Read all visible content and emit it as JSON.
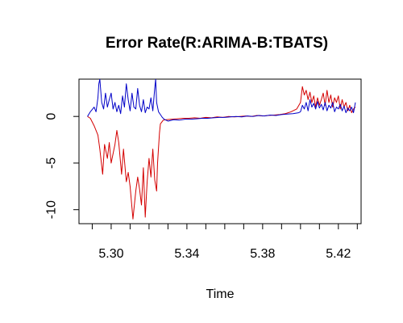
{
  "chart_data": {
    "type": "line",
    "title": "Error Rate(R:ARIMA-B:TBATS)",
    "xlabel": "Time",
    "ylabel": "",
    "xlim": [
      5.283,
      5.432
    ],
    "ylim": [
      -11.5,
      4.0
    ],
    "xticks": [
      5.3,
      5.34,
      5.38,
      5.42
    ],
    "xtick_labels": [
      "5.30",
      "5.34",
      "5.38",
      "5.42"
    ],
    "yticks": [
      -10,
      -5,
      0
    ],
    "ytick_labels": [
      "-10",
      "-5",
      "0"
    ],
    "grid": false,
    "series": [
      {
        "color": "#d40000",
        "x": [
          5.2875,
          5.289,
          5.291,
          5.293,
          5.294,
          5.2955,
          5.2965,
          5.298,
          5.299,
          5.3,
          5.301,
          5.302,
          5.303,
          5.304,
          5.3055,
          5.3065,
          5.308,
          5.309,
          5.31,
          5.3115,
          5.313,
          5.314,
          5.315,
          5.316,
          5.317,
          5.318,
          5.319,
          5.32,
          5.321,
          5.322,
          5.323,
          5.324,
          5.3245,
          5.3255,
          5.326,
          5.3275,
          5.329,
          5.332,
          5.335,
          5.338,
          5.341,
          5.344,
          5.347,
          5.35,
          5.353,
          5.356,
          5.359,
          5.362,
          5.365,
          5.368,
          5.371,
          5.374,
          5.377,
          5.38,
          5.383,
          5.386,
          5.389,
          5.392,
          5.395,
          5.398,
          5.4,
          5.401,
          5.402,
          5.403,
          5.404,
          5.405,
          5.406,
          5.407,
          5.408,
          5.409,
          5.41,
          5.411,
          5.412,
          5.413,
          5.414,
          5.415,
          5.416,
          5.417,
          5.418,
          5.419,
          5.42,
          5.421,
          5.422,
          5.423,
          5.424,
          5.425,
          5.426,
          5.427,
          5.428,
          5.429
        ],
        "y": [
          0.0,
          -0.2,
          -1.0,
          -2.0,
          -3.5,
          -6.2,
          -3.0,
          -4.5,
          -2.8,
          -5.0,
          -4.0,
          -3.0,
          -1.5,
          -2.8,
          -6.2,
          -3.5,
          -7.0,
          -6.0,
          -7.5,
          -11.0,
          -8.0,
          -6.5,
          -7.8,
          -9.5,
          -5.5,
          -10.8,
          -7.0,
          -4.5,
          -6.5,
          -3.5,
          -6.8,
          -8.0,
          -5.0,
          -1.8,
          -0.8,
          -0.4,
          -0.35,
          -0.3,
          -0.25,
          -0.2,
          -0.2,
          -0.15,
          -0.2,
          -0.1,
          -0.15,
          -0.05,
          -0.1,
          0.0,
          -0.05,
          0.0,
          0.05,
          0.0,
          0.1,
          0.05,
          0.1,
          0.15,
          0.2,
          0.3,
          0.5,
          0.8,
          1.5,
          3.2,
          2.3,
          2.8,
          1.8,
          2.6,
          1.5,
          2.2,
          1.0,
          2.0,
          1.2,
          1.8,
          2.5,
          1.2,
          2.8,
          1.5,
          2.3,
          1.0,
          2.0,
          1.5,
          2.2,
          0.8,
          1.8,
          1.0,
          1.5,
          0.6,
          1.2,
          0.4,
          0.8,
          1.0
        ]
      },
      {
        "color": "#0000c8",
        "x": [
          5.2875,
          5.289,
          5.291,
          5.292,
          5.293,
          5.2935,
          5.294,
          5.295,
          5.296,
          5.297,
          5.298,
          5.299,
          5.3,
          5.301,
          5.302,
          5.303,
          5.304,
          5.305,
          5.306,
          5.307,
          5.308,
          5.309,
          5.31,
          5.311,
          5.312,
          5.313,
          5.314,
          5.315,
          5.316,
          5.317,
          5.318,
          5.319,
          5.32,
          5.321,
          5.322,
          5.323,
          5.3235,
          5.324,
          5.325,
          5.326,
          5.327,
          5.328,
          5.33,
          5.333,
          5.336,
          5.339,
          5.342,
          5.345,
          5.348,
          5.351,
          5.354,
          5.357,
          5.36,
          5.363,
          5.366,
          5.369,
          5.372,
          5.375,
          5.378,
          5.381,
          5.384,
          5.387,
          5.39,
          5.393,
          5.396,
          5.399,
          5.4,
          5.401,
          5.402,
          5.403,
          5.404,
          5.405,
          5.406,
          5.407,
          5.408,
          5.409,
          5.41,
          5.411,
          5.412,
          5.413,
          5.414,
          5.415,
          5.416,
          5.417,
          5.418,
          5.419,
          5.42,
          5.421,
          5.422,
          5.423,
          5.424,
          5.425,
          5.426,
          5.427,
          5.428,
          5.429
        ],
        "y": [
          0.0,
          0.5,
          1.0,
          0.5,
          2.0,
          3.5,
          4.0,
          1.5,
          0.8,
          2.5,
          1.0,
          1.8,
          2.5,
          0.8,
          1.5,
          0.5,
          1.2,
          0.3,
          2.2,
          1.0,
          3.5,
          1.8,
          0.6,
          2.5,
          1.0,
          0.8,
          3.0,
          1.2,
          0.5,
          1.8,
          0.4,
          1.0,
          0.8,
          2.0,
          0.6,
          3.0,
          4.0,
          1.5,
          0.5,
          0.2,
          -0.1,
          -0.3,
          -0.5,
          -0.35,
          -0.4,
          -0.3,
          -0.3,
          -0.25,
          -0.2,
          -0.2,
          -0.15,
          -0.1,
          -0.1,
          -0.05,
          0.0,
          -0.05,
          0.05,
          0.0,
          0.1,
          0.05,
          0.15,
          0.1,
          0.2,
          0.25,
          0.3,
          0.4,
          0.5,
          1.2,
          0.8,
          1.5,
          0.6,
          1.8,
          1.0,
          1.4,
          0.8,
          1.6,
          0.9,
          1.3,
          0.7,
          1.5,
          0.6,
          1.2,
          0.9,
          1.5,
          0.5,
          1.0,
          0.8,
          1.3,
          0.6,
          1.1,
          0.4,
          0.9,
          0.6,
          1.0,
          0.4,
          1.5
        ]
      }
    ]
  }
}
